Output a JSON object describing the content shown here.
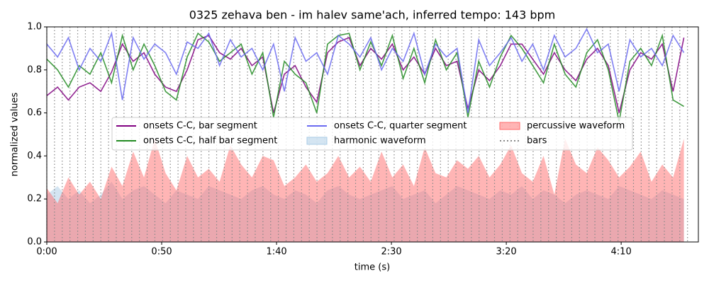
{
  "chart_data": {
    "type": "line",
    "title": "0325 zehava ben - im halev same'ach, inferred tempo: 143 bpm",
    "xlabel": "time (s)",
    "ylabel": "normalized values",
    "xlim": [
      0,
      283.6
    ],
    "ylim": [
      0,
      1
    ],
    "xticks": [
      {
        "value": 0,
        "label": "0:00"
      },
      {
        "value": 50,
        "label": "0:50"
      },
      {
        "value": 100,
        "label": "1:40"
      },
      {
        "value": 150,
        "label": "2:30"
      },
      {
        "value": 200,
        "label": "3:20"
      },
      {
        "value": 250,
        "label": "4:10"
      }
    ],
    "yticks": [
      {
        "value": 0,
        "label": "0.0"
      },
      {
        "value": 0.2,
        "label": "0.2"
      },
      {
        "value": 0.4,
        "label": "0.4"
      },
      {
        "value": 0.6,
        "label": "0.6"
      },
      {
        "value": 0.8,
        "label": "0.8"
      },
      {
        "value": 1,
        "label": "1.0"
      }
    ],
    "x": [
      0,
      4.7,
      9.4,
      14.1,
      18.8,
      23.5,
      28.2,
      32.9,
      37.6,
      42.3,
      47,
      51.7,
      56.4,
      61.1,
      65.8,
      70.5,
      75.2,
      79.9,
      84.6,
      89.3,
      94,
      98.7,
      103.4,
      108.1,
      112.8,
      117.5,
      122.2,
      126.9,
      131.6,
      136.3,
      141,
      145.7,
      150.4,
      155.1,
      159.8,
      164.5,
      169.2,
      173.9,
      178.6,
      183.3,
      188,
      192.7,
      197.4,
      202.1,
      206.8,
      211.5,
      216.2,
      220.9,
      225.6,
      230.3,
      235,
      239.7,
      244.4,
      249.1,
      253.8,
      258.5,
      263.2,
      267.9,
      272.6,
      277.3
    ],
    "series": [
      {
        "name": "onsets C-C, bar segment",
        "color": "#800080",
        "kind": "line",
        "values": [
          0.68,
          0.72,
          0.66,
          0.72,
          0.74,
          0.7,
          0.79,
          0.92,
          0.84,
          0.88,
          0.78,
          0.72,
          0.7,
          0.8,
          0.94,
          0.96,
          0.88,
          0.85,
          0.9,
          0.82,
          0.86,
          0.6,
          0.78,
          0.82,
          0.72,
          0.65,
          0.88,
          0.93,
          0.95,
          0.82,
          0.9,
          0.85,
          0.92,
          0.8,
          0.86,
          0.78,
          0.9,
          0.82,
          0.84,
          0.62,
          0.8,
          0.75,
          0.82,
          0.92,
          0.92,
          0.85,
          0.78,
          0.88,
          0.8,
          0.75,
          0.85,
          0.9,
          0.82,
          0.6,
          0.8,
          0.88,
          0.85,
          0.92,
          0.7,
          0.95
        ]
      },
      {
        "name": "onsets C-C, half bar segment",
        "color": "#228b22",
        "kind": "line",
        "values": [
          0.85,
          0.8,
          0.72,
          0.82,
          0.78,
          0.88,
          0.74,
          0.96,
          0.8,
          0.92,
          0.82,
          0.7,
          0.66,
          0.86,
          0.97,
          0.93,
          0.84,
          0.88,
          0.92,
          0.78,
          0.88,
          0.58,
          0.84,
          0.78,
          0.74,
          0.6,
          0.92,
          0.96,
          0.97,
          0.8,
          0.93,
          0.82,
          0.96,
          0.76,
          0.9,
          0.74,
          0.94,
          0.8,
          0.88,
          0.58,
          0.84,
          0.72,
          0.86,
          0.96,
          0.9,
          0.82,
          0.74,
          0.92,
          0.78,
          0.72,
          0.88,
          0.94,
          0.8,
          0.56,
          0.84,
          0.9,
          0.82,
          0.96,
          0.66,
          0.63
        ]
      },
      {
        "name": "onsets C-C, quarter segment",
        "color": "#6a6af0",
        "kind": "line",
        "values": [
          0.92,
          0.86,
          0.95,
          0.8,
          0.9,
          0.84,
          0.97,
          0.66,
          0.95,
          0.85,
          0.92,
          0.88,
          0.78,
          0.93,
          0.9,
          0.97,
          0.82,
          0.94,
          0.86,
          0.9,
          0.8,
          0.92,
          0.7,
          0.95,
          0.84,
          0.88,
          0.78,
          0.96,
          0.92,
          0.86,
          0.95,
          0.8,
          0.9,
          0.84,
          0.97,
          0.78,
          0.92,
          0.86,
          0.9,
          0.6,
          0.94,
          0.82,
          0.88,
          0.95,
          0.84,
          0.92,
          0.8,
          0.96,
          0.86,
          0.9,
          0.99,
          0.88,
          0.92,
          0.7,
          0.94,
          0.86,
          0.9,
          0.82,
          0.96,
          0.88
        ]
      },
      {
        "name": "harmonic waveform",
        "color": "#a9cbe6",
        "kind": "area",
        "values": [
          0.22,
          0.26,
          0.2,
          0.24,
          0.18,
          0.22,
          0.28,
          0.2,
          0.24,
          0.26,
          0.22,
          0.18,
          0.24,
          0.22,
          0.2,
          0.26,
          0.24,
          0.22,
          0.2,
          0.24,
          0.26,
          0.22,
          0.2,
          0.24,
          0.22,
          0.18,
          0.24,
          0.26,
          0.22,
          0.2,
          0.22,
          0.24,
          0.26,
          0.2,
          0.22,
          0.24,
          0.18,
          0.22,
          0.26,
          0.24,
          0.22,
          0.2,
          0.24,
          0.22,
          0.26,
          0.2,
          0.24,
          0.22,
          0.18,
          0.22,
          0.24,
          0.22,
          0.2,
          0.26,
          0.24,
          0.22,
          0.2,
          0.24,
          0.22,
          0.2
        ]
      },
      {
        "name": "percussive waveform",
        "color": "#ff6b6b",
        "kind": "area",
        "values": [
          0.25,
          0.18,
          0.3,
          0.22,
          0.28,
          0.2,
          0.35,
          0.26,
          0.42,
          0.3,
          0.48,
          0.32,
          0.24,
          0.4,
          0.3,
          0.34,
          0.28,
          0.45,
          0.36,
          0.3,
          0.4,
          0.38,
          0.26,
          0.3,
          0.36,
          0.28,
          0.32,
          0.4,
          0.3,
          0.35,
          0.28,
          0.42,
          0.3,
          0.36,
          0.26,
          0.44,
          0.32,
          0.3,
          0.38,
          0.34,
          0.4,
          0.3,
          0.36,
          0.45,
          0.32,
          0.28,
          0.4,
          0.22,
          0.48,
          0.36,
          0.32,
          0.44,
          0.38,
          0.3,
          0.35,
          0.42,
          0.28,
          0.36,
          0.3,
          0.48
        ]
      }
    ],
    "bars": {
      "name": "bars",
      "color": "#888888",
      "x": [
        0,
        3.36,
        6.72,
        10.08,
        13.44,
        16.8,
        20.16,
        23.52,
        26.88,
        30.24,
        33.6,
        36.96,
        40.32,
        43.68,
        47.04,
        50.4,
        53.76,
        57.12,
        60.48,
        63.84,
        67.2,
        70.56,
        73.92,
        77.28,
        80.64,
        84,
        87.36,
        90.72,
        94.08,
        97.44,
        100.8,
        104.16,
        107.52,
        110.88,
        114.24,
        117.6,
        120.96,
        124.32,
        127.68,
        131.04,
        134.4,
        137.76,
        141.12,
        144.48,
        147.84,
        151.2,
        154.56,
        157.92,
        161.28,
        164.64,
        168,
        171.36,
        174.72,
        178.08,
        181.44,
        184.8,
        188.16,
        191.52,
        194.88,
        198.24,
        201.6,
        204.96,
        208.32,
        211.68,
        215.04,
        218.4,
        221.76,
        225.12,
        228.48,
        231.84,
        235.2,
        238.56,
        241.92,
        245.28,
        248.64,
        252,
        255.36,
        258.72,
        262.08,
        265.44,
        268.8,
        272.16,
        275.52,
        278.88
      ]
    },
    "legend": "center"
  }
}
